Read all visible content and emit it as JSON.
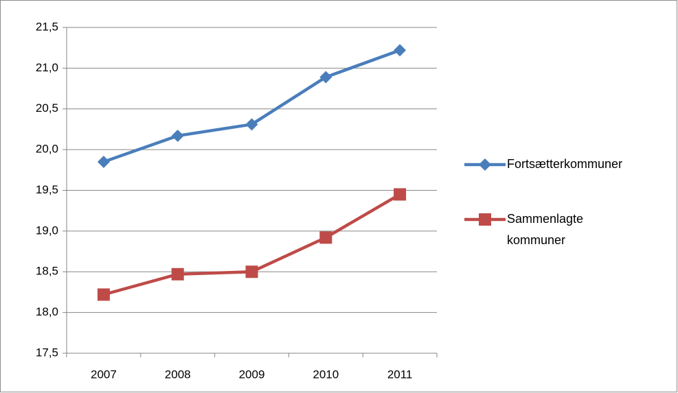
{
  "chart_data": {
    "type": "line",
    "categories": [
      "2007",
      "2008",
      "2009",
      "2010",
      "2011"
    ],
    "series": [
      {
        "name": "Fortsætterkommuner",
        "color": "#4a7ebb",
        "marker": "diamond",
        "values": [
          19.85,
          20.17,
          20.31,
          20.89,
          21.22
        ]
      },
      {
        "name": "Sammenlagte kommuner",
        "color": "#be4b48",
        "marker": "square",
        "values": [
          18.22,
          18.47,
          18.5,
          18.92,
          19.45
        ]
      }
    ],
    "ylim": [
      17.5,
      21.5
    ],
    "yticks": [
      {
        "value": 17.5,
        "label": "17,5"
      },
      {
        "value": 18.0,
        "label": "18,0"
      },
      {
        "value": 18.5,
        "label": "18,5"
      },
      {
        "value": 19.0,
        "label": "19,0"
      },
      {
        "value": 19.5,
        "label": "19,5"
      },
      {
        "value": 20.0,
        "label": "20,0"
      },
      {
        "value": 20.5,
        "label": "20,5"
      },
      {
        "value": 21.0,
        "label": "21,0"
      },
      {
        "value": 21.5,
        "label": "21,5"
      }
    ],
    "grid": true,
    "legend": "right"
  }
}
